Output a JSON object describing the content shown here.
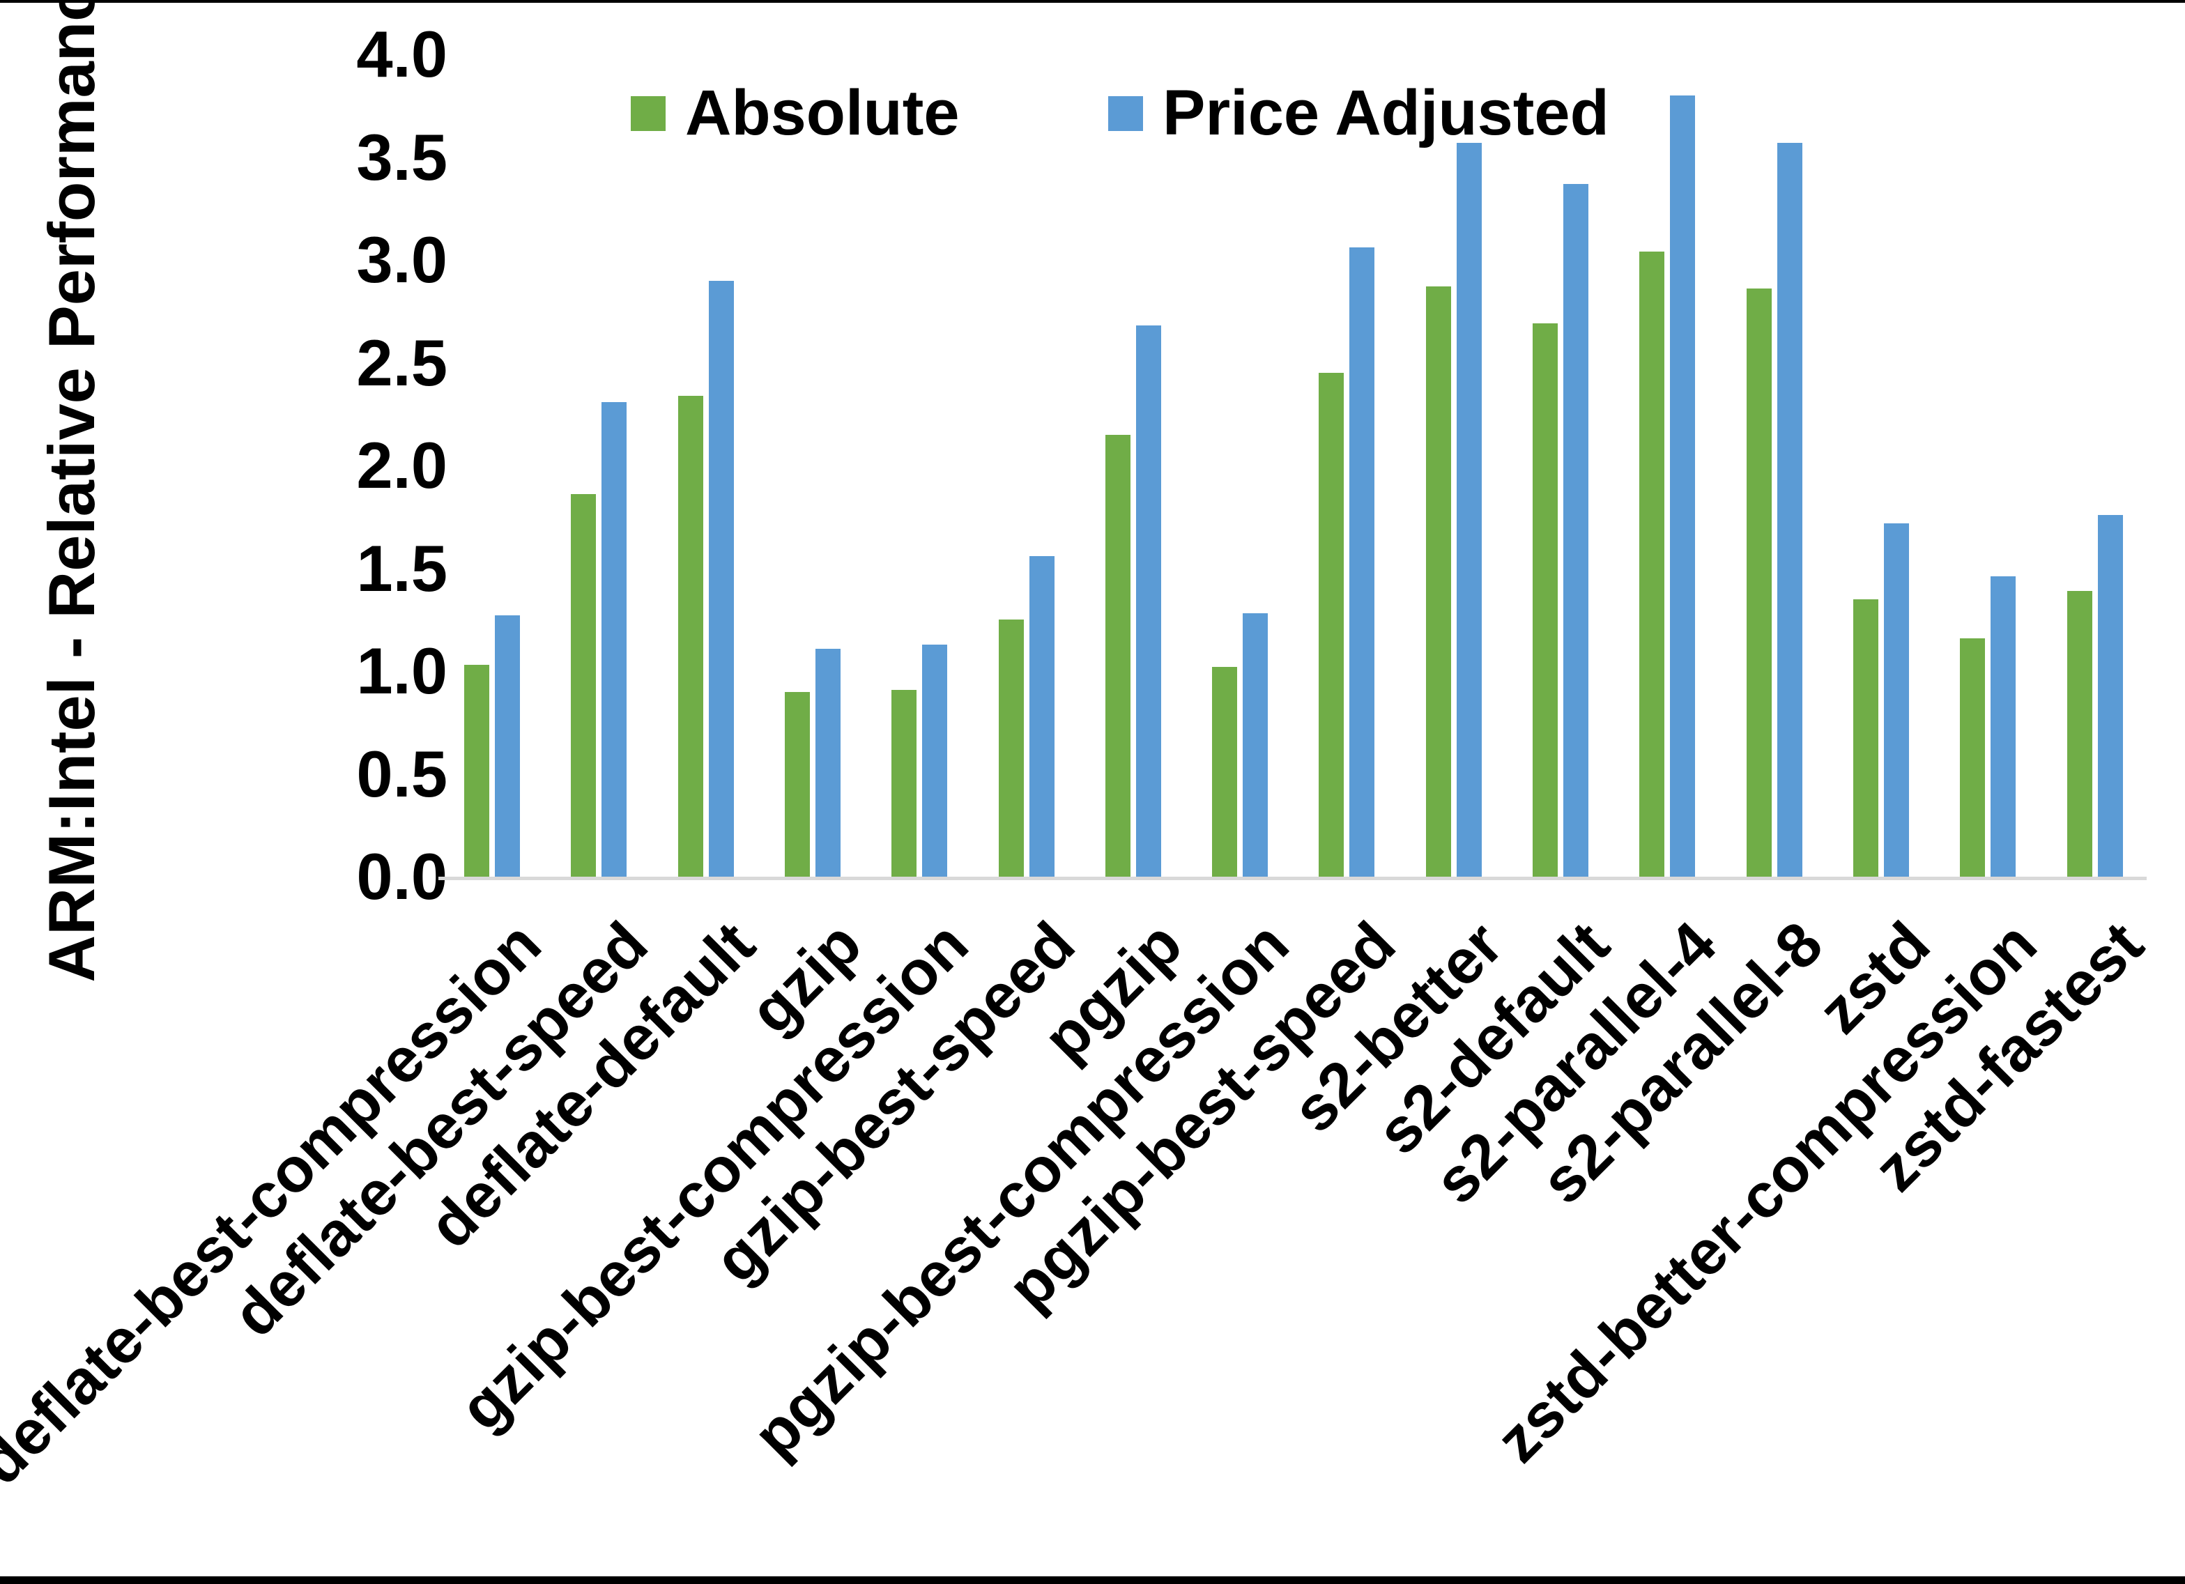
{
  "chart_data": {
    "type": "bar",
    "title": "",
    "ylabel": "ARM:Intel - Relative Performance",
    "xlabel": "",
    "ylim": [
      0.0,
      4.0
    ],
    "ytick_interval": 0.5,
    "ytick_labels": [
      "0.0",
      "0.5",
      "1.0",
      "1.5",
      "2.0",
      "2.5",
      "3.0",
      "3.5",
      "4.0"
    ],
    "grid": false,
    "legend_position": "top-center",
    "axis_line_color": "#D9D9D9",
    "categories": [
      "deflate-best-compression",
      "deflate-best-speed",
      "deflate-default",
      "gzip",
      "gzip-best-compression",
      "gzip-best-speed",
      "pgzip",
      "pgzip-best-compression",
      "pgzip-best-speed",
      "s2-better",
      "s2-default",
      "s2-parallel-4",
      "s2-parallel-8",
      "zstd",
      "zstd-better-compression",
      "zstd-fastest"
    ],
    "series": [
      {
        "name": "Absolute",
        "color": "#70AD47",
        "values": [
          1.03,
          1.86,
          2.34,
          0.9,
          0.91,
          1.25,
          2.15,
          1.02,
          2.45,
          2.87,
          2.69,
          3.04,
          2.86,
          1.35,
          1.16,
          1.39
        ]
      },
      {
        "name": "Price Adjusted",
        "color": "#5B9BD5",
        "values": [
          1.27,
          2.31,
          2.9,
          1.11,
          1.13,
          1.56,
          2.68,
          1.28,
          3.06,
          3.57,
          3.37,
          3.8,
          3.57,
          1.72,
          1.46,
          1.76
        ]
      }
    ]
  }
}
